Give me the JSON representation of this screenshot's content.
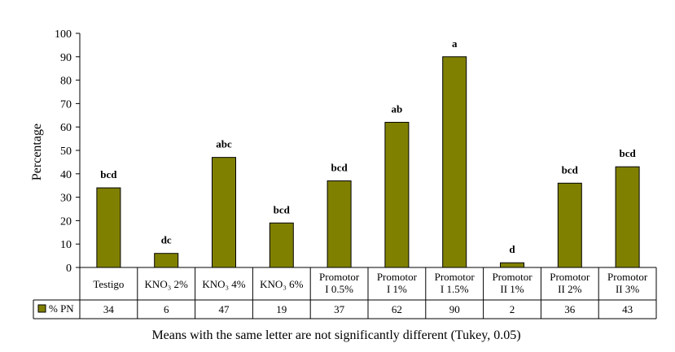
{
  "chart_data": {
    "type": "bar",
    "title": "",
    "ylabel": "Percentage",
    "xlabel": "",
    "ylim": [
      0,
      100
    ],
    "yticks": [
      0,
      10,
      20,
      30,
      40,
      50,
      60,
      70,
      80,
      90,
      100
    ],
    "categories": [
      [
        "Testigo"
      ],
      [
        "KNO₃ 2%"
      ],
      [
        "KNO₃ 4%"
      ],
      [
        "KNO₃ 6%"
      ],
      [
        "Promotor",
        "I 0.5%"
      ],
      [
        "Promotor",
        "I 1%"
      ],
      [
        "Promotor",
        "I 1.5%"
      ],
      [
        "Promotor",
        "II 1%"
      ],
      [
        "Promotor",
        "II 2%"
      ],
      [
        "Promotor",
        "II 3%"
      ]
    ],
    "series": [
      {
        "name": "% PN",
        "color": "#808000",
        "values": [
          34,
          6,
          47,
          19,
          37,
          62,
          90,
          2,
          36,
          43
        ]
      }
    ],
    "significance_letters": [
      "bcd",
      "dc",
      "abc",
      "bcd",
      "bcd",
      "ab",
      "a",
      "d",
      "bcd",
      "bcd"
    ],
    "data_table": true,
    "grid": false,
    "legend_placement": "data-table"
  },
  "caption": "Means with the same letter are not significantly different (Tukey, 0.05)"
}
